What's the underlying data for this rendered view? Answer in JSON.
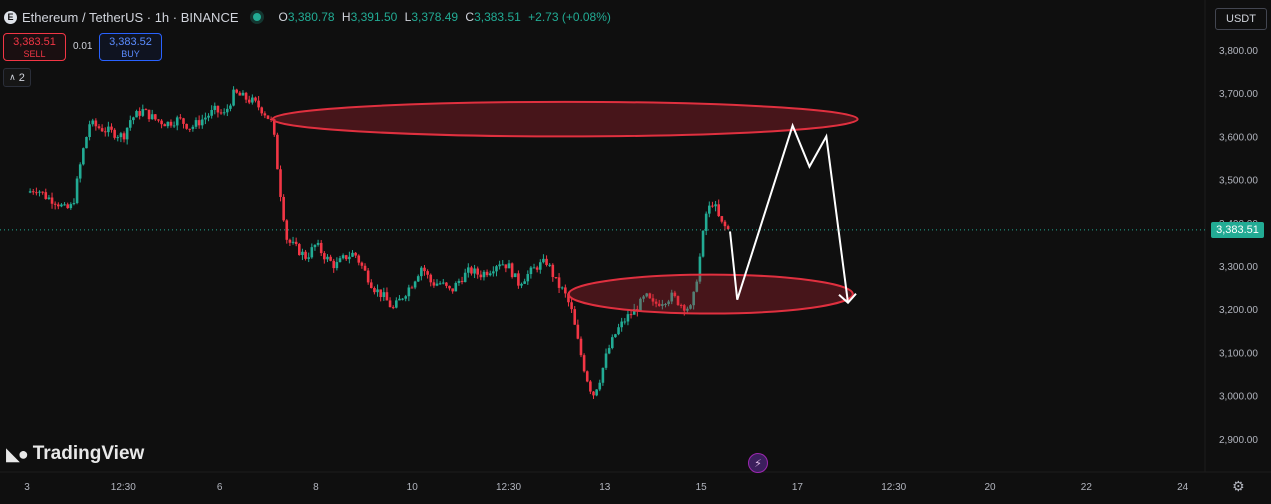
{
  "header": {
    "symbol_icon": "E",
    "title": "Ethereum / TetherUS · 1h · BINANCE",
    "ohlc": [
      {
        "key": "O",
        "value": "3,380.78"
      },
      {
        "key": "H",
        "value": "3,391.50"
      },
      {
        "key": "L",
        "value": "3,378.49"
      },
      {
        "key": "C",
        "value": "3,383.51"
      },
      {
        "key": "",
        "value": "+2.73 (+0.08%)"
      }
    ]
  },
  "trade": {
    "sell_price": "3,383.51",
    "sell_label": "SELL",
    "spread": "0.01",
    "buy_price": "3,383.52",
    "buy_label": "BUY"
  },
  "indicators_collapse": "2",
  "currency": "USDT",
  "last_price": "3,383.51",
  "logo": "TradingView",
  "colors": {
    "up": "#22ab94",
    "down": "#f23645",
    "zone": "#e0303f",
    "projection": "#ffffff"
  },
  "chart_data": {
    "type": "candlestick",
    "title": "Ethereum / TetherUS · 1h · BINANCE",
    "ylim": [
      2860,
      3860
    ],
    "y_ticks": [
      "3,800.00",
      "3,700.00",
      "3,600.00",
      "3,500.00",
      "3,400.00",
      "3,300.00",
      "3,200.00",
      "3,100.00",
      "3,000.00",
      "2,900.00"
    ],
    "y_tick_values": [
      3800,
      3700,
      3600,
      3500,
      3400,
      3300,
      3200,
      3100,
      3000,
      2900
    ],
    "x_ticks": [
      "3",
      "12:30",
      "6",
      "8",
      "10",
      "12:30",
      "13",
      "15",
      "17",
      "12:30",
      "20",
      "22",
      "24"
    ],
    "x_tick_positions": [
      0,
      4,
      8,
      12,
      16,
      20,
      24,
      28,
      32,
      36,
      40,
      44,
      48
    ],
    "xlim": [
      0,
      50
    ],
    "close_path": [
      [
        0,
        3470
      ],
      [
        0.4,
        3480
      ],
      [
        0.8,
        3460
      ],
      [
        1.2,
        3450
      ],
      [
        1.6,
        3430
      ],
      [
        1.9,
        3440
      ],
      [
        2.3,
        3560
      ],
      [
        2.6,
        3630
      ],
      [
        3,
        3620
      ],
      [
        3.5,
        3610
      ],
      [
        4,
        3600
      ],
      [
        4.3,
        3640
      ],
      [
        4.8,
        3660
      ],
      [
        5.3,
        3640
      ],
      [
        5.8,
        3630
      ],
      [
        6.3,
        3640
      ],
      [
        6.8,
        3620
      ],
      [
        7.3,
        3640
      ],
      [
        7.8,
        3660
      ],
      [
        8.2,
        3650
      ],
      [
        8.6,
        3700
      ],
      [
        9,
        3690
      ],
      [
        9.4,
        3680
      ],
      [
        9.8,
        3660
      ],
      [
        10.2,
        3630
      ],
      [
        10.5,
        3480
      ],
      [
        10.8,
        3360
      ],
      [
        11.2,
        3340
      ],
      [
        11.6,
        3320
      ],
      [
        12,
        3350
      ],
      [
        12.4,
        3320
      ],
      [
        12.8,
        3300
      ],
      [
        13.2,
        3320
      ],
      [
        13.6,
        3330
      ],
      [
        14,
        3290
      ],
      [
        14.4,
        3250
      ],
      [
        14.8,
        3230
      ],
      [
        15.2,
        3200
      ],
      [
        15.6,
        3230
      ],
      [
        16,
        3260
      ],
      [
        16.4,
        3300
      ],
      [
        16.8,
        3260
      ],
      [
        17.2,
        3260
      ],
      [
        17.6,
        3240
      ],
      [
        18,
        3270
      ],
      [
        18.4,
        3290
      ],
      [
        18.8,
        3280
      ],
      [
        19.2,
        3290
      ],
      [
        19.6,
        3310
      ],
      [
        20,
        3300
      ],
      [
        20.4,
        3260
      ],
      [
        20.8,
        3280
      ],
      [
        21.2,
        3300
      ],
      [
        21.6,
        3310
      ],
      [
        22,
        3260
      ],
      [
        22.3,
        3240
      ],
      [
        22.6,
        3200
      ],
      [
        22.9,
        3120
      ],
      [
        23.2,
        3050
      ],
      [
        23.5,
        3000
      ],
      [
        23.8,
        3040
      ],
      [
        24.1,
        3100
      ],
      [
        24.5,
        3150
      ],
      [
        24.9,
        3180
      ],
      [
        25.3,
        3200
      ],
      [
        25.7,
        3230
      ],
      [
        26,
        3210
      ],
      [
        26.4,
        3220
      ],
      [
        26.8,
        3230
      ],
      [
        27.2,
        3210
      ],
      [
        27.6,
        3200
      ],
      [
        27.9,
        3300
      ],
      [
        28.2,
        3420
      ],
      [
        28.5,
        3450
      ],
      [
        28.8,
        3400
      ],
      [
        29.2,
        3380
      ]
    ],
    "zones": [
      {
        "x_start": 10.2,
        "x_end": 34.5,
        "y_low": 3600,
        "y_high": 3680
      },
      {
        "x_start": 22.5,
        "x_end": 34.3,
        "y_low": 3190,
        "y_high": 3280
      }
    ],
    "projection": [
      [
        29.2,
        3380
      ],
      [
        29.5,
        3222
      ],
      [
        31.8,
        3625
      ],
      [
        32.5,
        3530
      ],
      [
        33.2,
        3600
      ],
      [
        34.1,
        3215
      ]
    ],
    "last_price": 3383.51
  }
}
